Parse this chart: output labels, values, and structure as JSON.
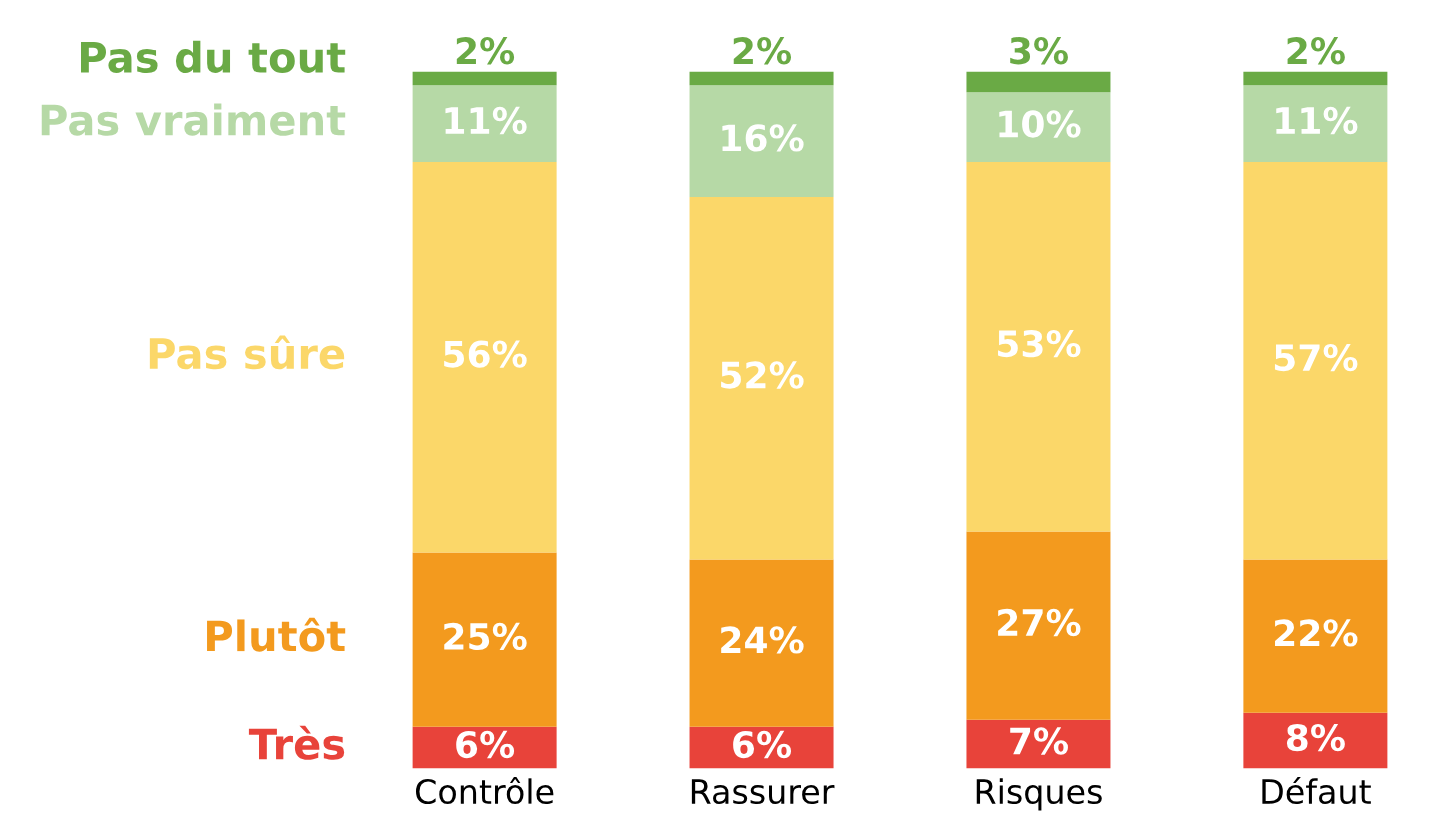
{
  "chart_data": {
    "type": "bar",
    "stacked": true,
    "legend": false,
    "grid": false,
    "ylim": [
      0,
      100
    ],
    "tick_labels": "x",
    "categories": [
      "Contrôle",
      "Rassurer",
      "Risques",
      "Défaut"
    ],
    "series": [
      {
        "name": "Très",
        "color": "#e8433a",
        "values": [
          6,
          6,
          7,
          8
        ],
        "value_labels": [
          "6%",
          "6%",
          "7%",
          "8%"
        ]
      },
      {
        "name": "Plutôt",
        "color": "#f39a1e",
        "values": [
          25,
          24,
          27,
          22
        ],
        "value_labels": [
          "25%",
          "24%",
          "27%",
          "22%"
        ]
      },
      {
        "name": "Pas sûre",
        "color": "#fbd769",
        "values": [
          56,
          52,
          53,
          57
        ],
        "value_labels": [
          "56%",
          "52%",
          "53%",
          "57%"
        ]
      },
      {
        "name": "Pas vraiment",
        "color": "#b6d9a6",
        "values": [
          11,
          16,
          10,
          11
        ],
        "value_labels": [
          "11%",
          "16%",
          "10%",
          "11%"
        ]
      },
      {
        "name": "Pas du tout",
        "color": "#6aaa45",
        "values": [
          2,
          2,
          3,
          2
        ],
        "value_labels": [
          "2%",
          "2%",
          "3%",
          "2%"
        ]
      }
    ]
  }
}
